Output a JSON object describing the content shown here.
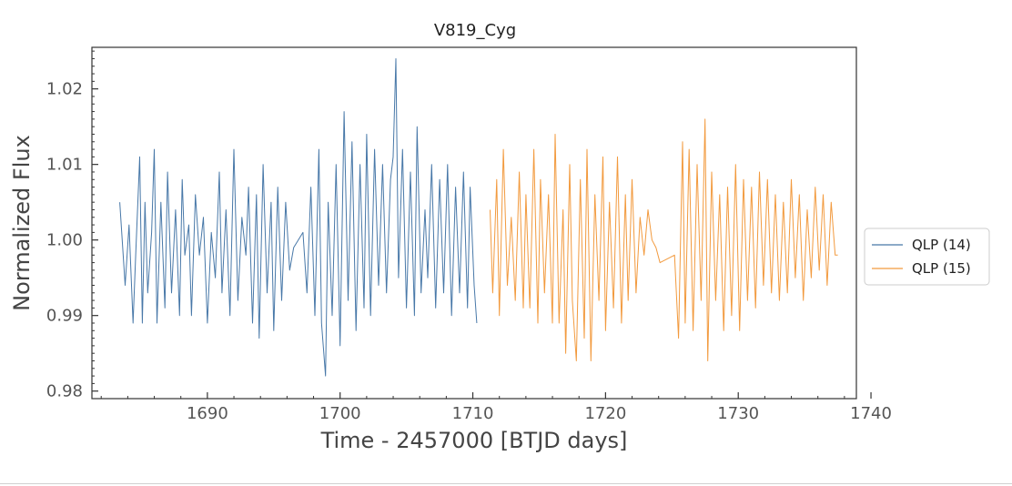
{
  "chart_data": {
    "type": "line",
    "title": "V819_Cyg",
    "xlabel": "Time - 2457000 [BTJD days]",
    "ylabel": "Normalized Flux",
    "xlim": [
      1681.3,
      1738.9
    ],
    "ylim": [
      0.979,
      1.0255
    ],
    "xticks": [
      1690,
      1700,
      1710,
      1720,
      1730,
      1740
    ],
    "xtick_labels": [
      "1690",
      "1700",
      "1710",
      "1720",
      "1730",
      "1740"
    ],
    "yticks": [
      0.98,
      0.99,
      1.0,
      1.01,
      1.02
    ],
    "ytick_labels": [
      "0.98",
      "0.99",
      "1.00",
      "1.01",
      "1.02"
    ],
    "grid": false,
    "legend_placement": "outside-right",
    "series": [
      {
        "name": "QLP (14)",
        "color": "#4878a8",
        "x": [
          1683.4,
          1683.8,
          1684.1,
          1684.4,
          1684.6,
          1684.9,
          1685.1,
          1685.3,
          1685.5,
          1685.8,
          1686.0,
          1686.2,
          1686.5,
          1686.8,
          1687.0,
          1687.3,
          1687.6,
          1687.9,
          1688.1,
          1688.3,
          1688.6,
          1688.8,
          1689.1,
          1689.4,
          1689.7,
          1690.0,
          1690.3,
          1690.6,
          1690.9,
          1691.1,
          1691.4,
          1691.7,
          1692.0,
          1692.3,
          1692.6,
          1692.9,
          1693.1,
          1693.4,
          1693.7,
          1693.9,
          1694.2,
          1694.5,
          1694.8,
          1695.0,
          1695.3,
          1695.6,
          1695.9,
          1696.2,
          1696.5,
          1697.2,
          1697.5,
          1697.8,
          1698.1,
          1698.4,
          1698.6,
          1698.9,
          1699.1,
          1699.4,
          1699.7,
          1700.0,
          1700.3,
          1700.6,
          1700.9,
          1701.2,
          1701.5,
          1701.8,
          1702.0,
          1702.3,
          1702.6,
          1702.9,
          1703.2,
          1703.5,
          1703.8,
          1704.0,
          1704.2,
          1704.4,
          1704.7,
          1705.0,
          1705.3,
          1705.6,
          1705.8,
          1706.1,
          1706.4,
          1706.6,
          1706.9,
          1707.2,
          1707.5,
          1707.8,
          1708.1,
          1708.4,
          1708.7,
          1709.0,
          1709.3,
          1709.6,
          1709.8,
          1710.1,
          1710.3
        ],
        "y": [
          1.005,
          0.994,
          1.002,
          0.989,
          0.998,
          1.011,
          0.989,
          1.005,
          0.993,
          1.001,
          1.012,
          0.989,
          1.005,
          0.991,
          1.009,
          0.993,
          1.004,
          0.99,
          1.008,
          0.998,
          1.002,
          0.99,
          1.006,
          0.998,
          1.003,
          0.989,
          1.001,
          0.995,
          1.009,
          0.993,
          1.004,
          0.99,
          1.012,
          0.992,
          1.003,
          0.998,
          1.007,
          0.989,
          1.006,
          0.987,
          1.01,
          0.993,
          1.005,
          0.988,
          1.007,
          0.992,
          1.005,
          0.996,
          0.999,
          1.001,
          0.993,
          1.007,
          0.99,
          1.012,
          0.989,
          0.982,
          1.005,
          0.99,
          1.01,
          0.986,
          1.017,
          0.992,
          1.013,
          0.988,
          1.01,
          0.991,
          1.014,
          0.99,
          1.012,
          0.994,
          1.01,
          0.993,
          1.008,
          1.011,
          1.024,
          0.995,
          1.012,
          0.991,
          1.009,
          0.99,
          1.015,
          0.993,
          1.004,
          0.995,
          1.01,
          0.991,
          1.008,
          0.993,
          1.01,
          0.99,
          1.007,
          0.993,
          1.009,
          0.991,
          1.007,
          0.994,
          0.989
        ]
      },
      {
        "name": "QLP (15)",
        "color": "#f29a3e",
        "x": [
          1711.3,
          1711.5,
          1711.8,
          1712.0,
          1712.3,
          1712.6,
          1712.9,
          1713.2,
          1713.5,
          1713.8,
          1714.0,
          1714.3,
          1714.6,
          1714.9,
          1715.1,
          1715.4,
          1715.7,
          1716.0,
          1716.2,
          1716.5,
          1716.8,
          1717.0,
          1717.3,
          1717.5,
          1717.8,
          1718.1,
          1718.4,
          1718.6,
          1718.9,
          1719.2,
          1719.5,
          1719.8,
          1720.0,
          1720.3,
          1720.6,
          1720.9,
          1721.2,
          1721.5,
          1721.7,
          1722.0,
          1722.3,
          1722.6,
          1722.9,
          1723.2,
          1723.5,
          1723.8,
          1724.1,
          1725.2,
          1725.5,
          1725.8,
          1726.0,
          1726.3,
          1726.6,
          1726.9,
          1727.2,
          1727.5,
          1727.7,
          1728.0,
          1728.3,
          1728.6,
          1728.9,
          1729.2,
          1729.5,
          1729.8,
          1730.1,
          1730.4,
          1730.7,
          1731.0,
          1731.3,
          1731.6,
          1731.9,
          1732.2,
          1732.5,
          1732.8,
          1733.1,
          1733.4,
          1733.7,
          1734.0,
          1734.3,
          1734.6,
          1734.9,
          1735.2,
          1735.5,
          1735.8,
          1736.1,
          1736.4,
          1736.7,
          1737.0,
          1737.3,
          1737.5
        ],
        "y": [
          1.004,
          0.993,
          1.008,
          0.99,
          1.012,
          0.994,
          1.003,
          0.992,
          1.009,
          0.991,
          1.006,
          0.991,
          1.012,
          0.989,
          1.008,
          0.993,
          1.006,
          0.989,
          1.014,
          0.989,
          1.004,
          0.985,
          1.01,
          0.992,
          0.984,
          1.008,
          0.987,
          1.012,
          0.984,
          1.006,
          0.992,
          1.011,
          0.988,
          1.005,
          0.991,
          1.011,
          0.989,
          1.006,
          0.992,
          1.008,
          0.993,
          1.003,
          0.998,
          1.004,
          1.0,
          0.999,
          0.997,
          0.998,
          0.987,
          1.013,
          0.989,
          1.012,
          0.988,
          1.01,
          0.992,
          1.016,
          0.984,
          1.009,
          0.992,
          1.006,
          0.988,
          1.007,
          0.99,
          1.01,
          0.988,
          1.008,
          0.992,
          1.007,
          0.991,
          1.009,
          0.994,
          1.008,
          0.993,
          1.006,
          0.992,
          1.005,
          0.993,
          1.008,
          0.995,
          1.006,
          0.992,
          1.004,
          0.995,
          1.007,
          0.996,
          1.006,
          0.994,
          1.005,
          0.998,
          0.998
        ]
      }
    ]
  }
}
